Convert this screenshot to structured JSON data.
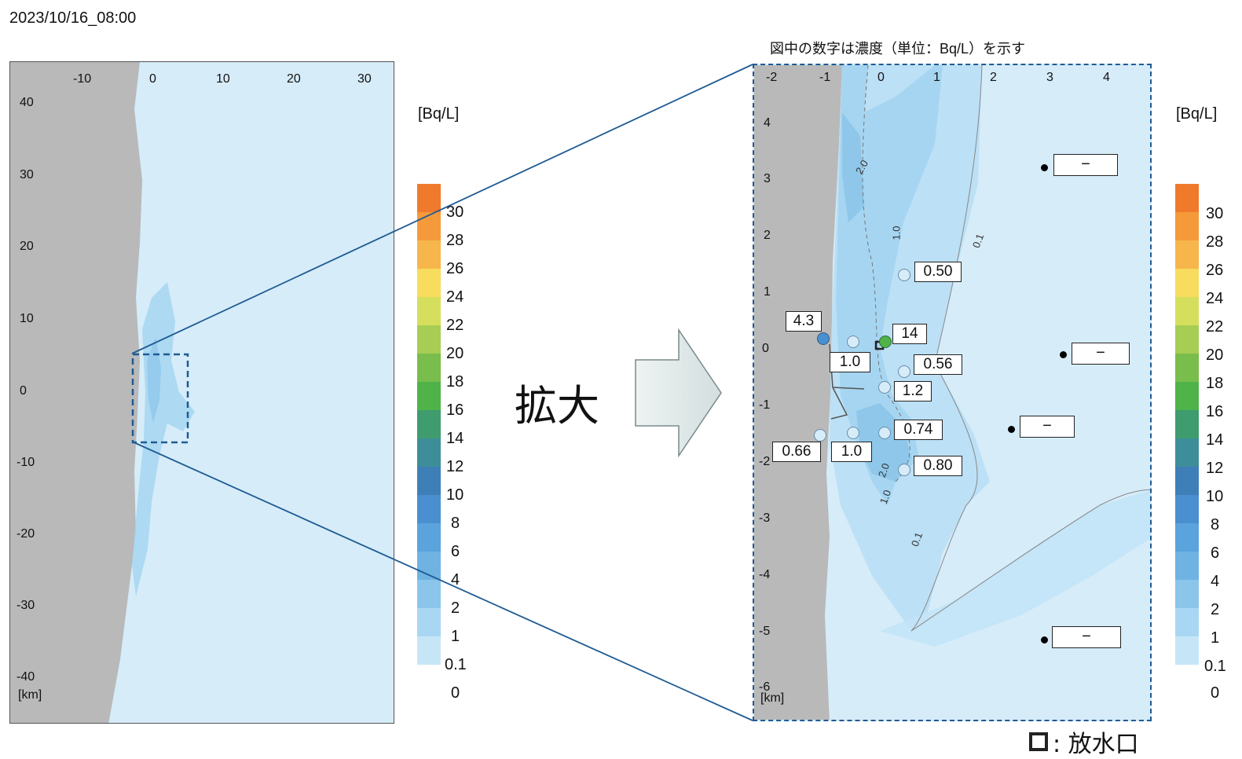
{
  "timestamp": "2023/10/16_08:00",
  "zoom_label": "拡大",
  "note": "図中の数字は濃度（単位：Bq/L）を示す",
  "outlet_legend": ": 放水口",
  "colors": {
    "land": "#b9b9b9",
    "sea_base": "#d6ecf9",
    "plume_light": "#bfe2f5",
    "plume_mid": "#a6d6f1",
    "plume_dark": "#8ec7ea",
    "zoom_frame": "#1f5b93"
  },
  "left_map": {
    "unit": "[Bq/L]",
    "x_ticks": [
      "-10",
      "0",
      "10",
      "20",
      "30"
    ],
    "y_ticks": [
      "40",
      "30",
      "20",
      "10",
      "0",
      "-10",
      "-20",
      "-30",
      "-40"
    ],
    "km_label": "[km]"
  },
  "right_map": {
    "unit": "[Bq/L]",
    "x_ticks": [
      "-2",
      "-1",
      "0",
      "1",
      "2",
      "3",
      "4"
    ],
    "y_ticks": [
      "4",
      "3",
      "2",
      "1",
      "0",
      "-1",
      "-2",
      "-3",
      "-4",
      "-5",
      "-6"
    ],
    "km_label": "[km]",
    "contour_labels": [
      "2.0",
      "1.0",
      "0.1",
      "2.0",
      "1.0",
      "0.1"
    ],
    "measurements": [
      "0.50",
      "4.3",
      "14",
      "1.0",
      "0.56",
      "1.2",
      "0.74",
      "0.66",
      "1.0",
      "0.80"
    ],
    "no_data_labels": [
      "−",
      "−",
      "−",
      "−"
    ]
  },
  "legend": {
    "ticks": [
      "30",
      "28",
      "26",
      "24",
      "22",
      "20",
      "18",
      "16",
      "14",
      "12",
      "10",
      "8",
      "6",
      "4",
      "2",
      "1",
      "0.1",
      "0"
    ],
    "colors": [
      "#f07a2c",
      "#f59a3a",
      "#f6b64b",
      "#f8dc5e",
      "#d6df5d",
      "#a8cd54",
      "#79bd4c",
      "#4fb34a",
      "#3e9c6e",
      "#3e8e9a",
      "#3f7fb7",
      "#4a8fd0",
      "#5ba3dc",
      "#6fb3e2",
      "#8bc6ea",
      "#a9d7f3",
      "#c6e6f8",
      "#dcf0fb"
    ]
  }
}
